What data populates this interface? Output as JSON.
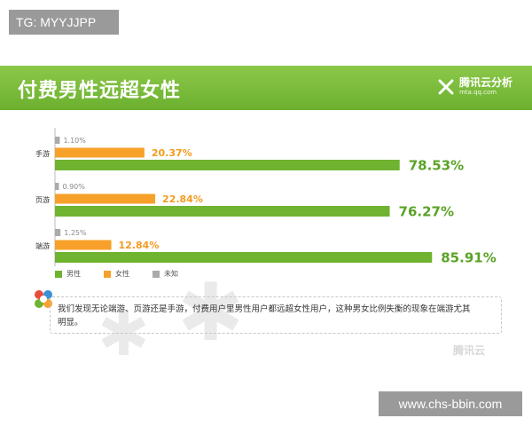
{
  "watermarks": {
    "top": "TG: MYYJJPP",
    "bottom": "www.chs-bbin.com"
  },
  "header": {
    "title": "付费男性远超女性",
    "brand_name": "腾讯云分析",
    "brand_url": "mta.qq.com"
  },
  "colors": {
    "male": "#6fb330",
    "female": "#f7a12a",
    "unknown": "#aaaaaa",
    "banner": "#7cbd3c"
  },
  "chart_data": {
    "type": "bar",
    "orientation": "horizontal",
    "categories": [
      "手游",
      "页游",
      "端游"
    ],
    "series": [
      {
        "name": "未知",
        "values": [
          1.1,
          0.9,
          1.25
        ],
        "labels": [
          "1.10%",
          "0.90%",
          "1.25%"
        ]
      },
      {
        "name": "女性",
        "values": [
          20.37,
          22.84,
          12.84
        ],
        "labels": [
          "20.37%",
          "22.84%",
          "12.84%"
        ]
      },
      {
        "name": "男性",
        "values": [
          78.53,
          76.27,
          85.91
        ],
        "labels": [
          "78.53%",
          "76.27%",
          "85.91%"
        ]
      }
    ],
    "legend": [
      "男性",
      "女性",
      "未知"
    ],
    "legend_position": "bottom-left",
    "xlim": [
      0,
      100
    ],
    "grid": false
  },
  "note": {
    "line1": "我们发现无论端游、页游还是手游，付费用户里男性用户都远超女性用户，这种男女比例失衡的现象在端游尤其",
    "line2": "明显。",
    "brand": "腾讯云"
  }
}
